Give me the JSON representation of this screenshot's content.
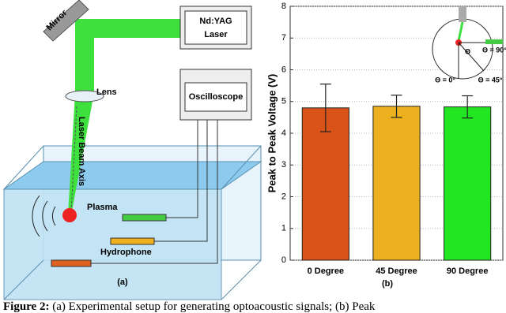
{
  "diagram": {
    "mirror": "Mirror",
    "laser": [
      "Nd:YAG",
      "Laser"
    ],
    "lens": "Lens",
    "beam_axis": "Laser Beam Axis",
    "oscilloscope": "Oscilloscope",
    "plasma": "Plasma",
    "hydrophone": "Hydrophone",
    "panel": "(a)"
  },
  "chart_data": {
    "type": "bar",
    "ylabel": "Peak to Peak Voltage (V)",
    "categories": [
      "0 Degree",
      "45 Degree",
      "90 Degree"
    ],
    "values": [
      4.8,
      4.85,
      4.83
    ],
    "errors": [
      0.75,
      0.35,
      0.35
    ],
    "colors": [
      "#d95319",
      "#edb120",
      "#22e622"
    ],
    "ylim": [
      0,
      8
    ],
    "yticks": [
      0,
      1,
      2,
      3,
      4,
      5,
      6,
      7,
      8
    ],
    "grid": true,
    "panel": "(b)",
    "inset_labels": [
      "Θ",
      "Θ = 90°",
      "Θ = 45°",
      "Θ = 0°"
    ]
  },
  "caption": {
    "label": "Figure 2:",
    "text": "(a) Experimental setup for generating optoacoustic signals; (b) Peak"
  }
}
